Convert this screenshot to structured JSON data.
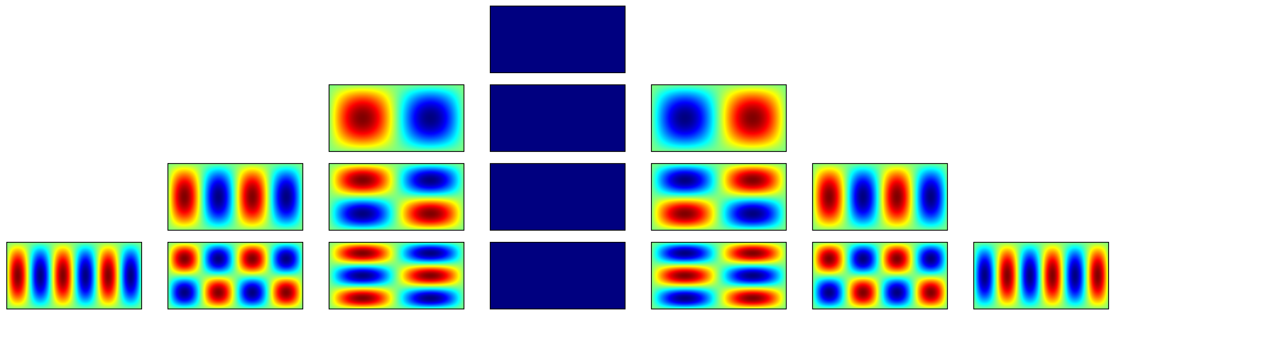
{
  "colors": {
    "uniform_panel": "#000080",
    "panel_border": "#000000",
    "background": "#ffffff"
  },
  "colormap": "jet",
  "rows": [
    {
      "panels": [
        {
          "cols": 0,
          "rows": 0,
          "phase": 0
        }
      ]
    },
    {
      "panels": [
        {
          "cols": 2,
          "rows": 1,
          "phase": 0
        },
        {
          "cols": 0,
          "rows": 0,
          "phase": 0
        },
        {
          "cols": 2,
          "rows": 1,
          "phase": 1
        }
      ]
    },
    {
      "panels": [
        {
          "cols": 4,
          "rows": 1,
          "phase": 0
        },
        {
          "cols": 2,
          "rows": 2,
          "phase": 0
        },
        {
          "cols": 0,
          "rows": 0,
          "phase": 0
        },
        {
          "cols": 2,
          "rows": 2,
          "phase": 1
        },
        {
          "cols": 4,
          "rows": 1,
          "phase": 0
        }
      ]
    },
    {
      "panels": [
        {
          "cols": 6,
          "rows": 1,
          "phase": 0
        },
        {
          "cols": 4,
          "rows": 2,
          "phase": 0
        },
        {
          "cols": 2,
          "rows": 3,
          "phase": 0
        },
        {
          "cols": 0,
          "rows": 0,
          "phase": 0
        },
        {
          "cols": 2,
          "rows": 3,
          "phase": 1
        },
        {
          "cols": 4,
          "rows": 2,
          "phase": 0
        },
        {
          "cols": 6,
          "rows": 1,
          "phase": 1
        }
      ]
    }
  ]
}
